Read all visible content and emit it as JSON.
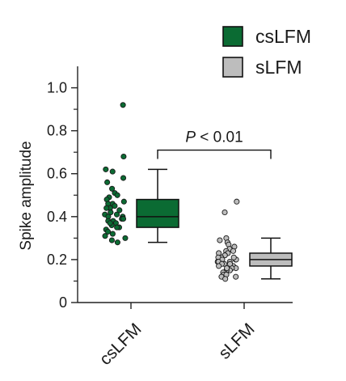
{
  "chart_data": {
    "type": "box",
    "categories": [
      "csLFM",
      "sLFM"
    ],
    "ylabel": "Spike amplitude",
    "xlabel": "",
    "title": "",
    "ylim": [
      0,
      1.1
    ],
    "yticks": [
      0,
      0.2,
      0.4,
      0.6,
      0.8,
      1.0
    ],
    "ytick_labels": [
      "0",
      "0.2",
      "0.4",
      "0.6",
      "0.8",
      "1.0"
    ],
    "legend_position": "top-right",
    "legend": [
      {
        "name": "csLFM",
        "color": "#0b6b33"
      },
      {
        "name": "sLFM",
        "color": "#bdbdbd"
      }
    ],
    "annotation": {
      "prefix": "P",
      "text": " < 0.01",
      "between": [
        "csLFM",
        "sLFM"
      ],
      "y": 0.71
    },
    "series": [
      {
        "name": "csLFM",
        "color": "#0b6b33",
        "box": {
          "whisker_low": 0.28,
          "q1": 0.35,
          "median": 0.4,
          "q3": 0.48,
          "whisker_high": 0.62
        },
        "points": [
          0.92,
          0.68,
          0.62,
          0.61,
          0.58,
          0.56,
          0.53,
          0.51,
          0.5,
          0.49,
          0.48,
          0.47,
          0.46,
          0.46,
          0.45,
          0.44,
          0.44,
          0.43,
          0.42,
          0.42,
          0.41,
          0.4,
          0.4,
          0.39,
          0.38,
          0.38,
          0.37,
          0.36,
          0.35,
          0.35,
          0.34,
          0.33,
          0.32,
          0.31,
          0.3,
          0.29,
          0.28,
          0.41,
          0.39,
          0.37
        ]
      },
      {
        "name": "sLFM",
        "color": "#bdbdbd",
        "box": {
          "whisker_low": 0.11,
          "q1": 0.17,
          "median": 0.2,
          "q3": 0.23,
          "whisker_high": 0.3
        },
        "points": [
          0.47,
          0.42,
          0.3,
          0.29,
          0.28,
          0.27,
          0.26,
          0.25,
          0.24,
          0.24,
          0.23,
          0.23,
          0.22,
          0.22,
          0.21,
          0.21,
          0.2,
          0.2,
          0.2,
          0.19,
          0.19,
          0.18,
          0.18,
          0.17,
          0.17,
          0.16,
          0.16,
          0.15,
          0.15,
          0.14,
          0.14,
          0.13,
          0.13,
          0.12,
          0.12,
          0.11,
          0.21,
          0.19,
          0.18,
          0.16
        ]
      }
    ]
  }
}
